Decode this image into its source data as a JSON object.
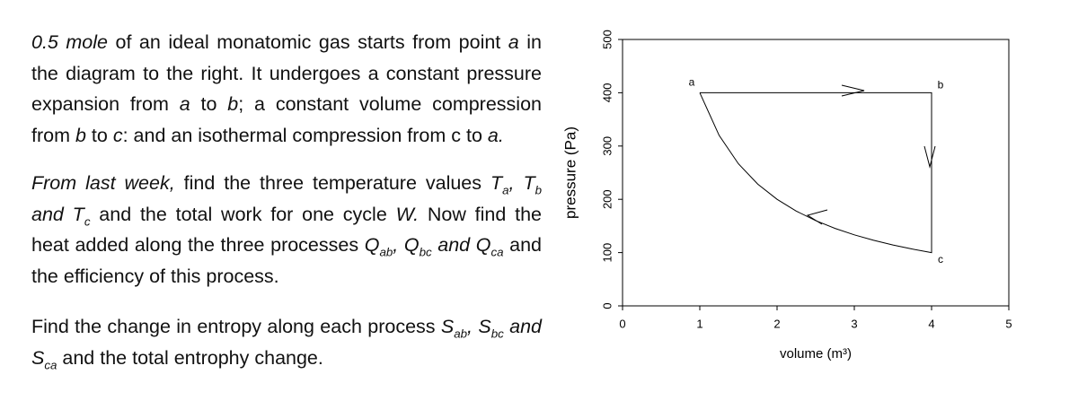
{
  "problem": {
    "paragraphs": [
      [
        {
          "text": "0.5  mole",
          "italic": true
        },
        {
          "text": " of an ideal monatomic gas starts from point "
        },
        {
          "text": "a",
          "italic": true
        },
        {
          "text": " in the diagram to the right.  It undergoes a constant pressure expansion from "
        },
        {
          "text": "a",
          "italic": true
        },
        {
          "text": " to "
        },
        {
          "text": "b",
          "italic": true
        },
        {
          "text": "; a constant volume compression from "
        },
        {
          "text": "b",
          "italic": true
        },
        {
          "text": " to "
        },
        {
          "text": "c",
          "italic": true
        },
        {
          "text": ": and an isothermal compression from "
        },
        {
          "text": "c"
        },
        {
          "text": " to "
        },
        {
          "text": "a.",
          "italic": true
        }
      ],
      [
        {
          "text": "From last week,",
          "italic": true
        },
        {
          "text": " find the three temperature values "
        },
        {
          "text": "T",
          "italic": true
        },
        {
          "text": "a",
          "italic": true,
          "sub": true
        },
        {
          "text": ", ",
          "italic": true
        },
        {
          "text": "T",
          "italic": true
        },
        {
          "text": "b",
          "italic": true,
          "sub": true
        },
        {
          "text": " and T",
          "italic": true
        },
        {
          "text": "c",
          "italic": true,
          "sub": true
        },
        {
          "text": " and the total work for one cycle "
        },
        {
          "text": "W.",
          "italic": true
        },
        {
          "text": " Now find the heat added along the three processes "
        },
        {
          "text": "Q",
          "italic": true
        },
        {
          "text": "ab",
          "italic": true,
          "sub": true
        },
        {
          "text": ", ",
          "italic": true
        },
        {
          "text": "Q",
          "italic": true
        },
        {
          "text": "bc",
          "italic": true,
          "sub": true
        },
        {
          "text": " and Q",
          "italic": true
        },
        {
          "text": "ca",
          "italic": true,
          "sub": true
        },
        {
          "text": " and the efficiency of this process."
        }
      ],
      [
        {
          "text": "Find the change in entropy along each process "
        },
        {
          "text": "S",
          "italic": true
        },
        {
          "text": "ab",
          "italic": true,
          "sub": true
        },
        {
          "text": ", ",
          "italic": true
        },
        {
          "text": "S",
          "italic": true
        },
        {
          "text": "bc",
          "italic": true,
          "sub": true
        },
        {
          "text": " and S",
          "italic": true
        },
        {
          "text": "ca",
          "italic": true,
          "sub": true
        },
        {
          "text": " and the total entrophy change."
        }
      ]
    ]
  },
  "chart_data": {
    "type": "line",
    "x_label": "volume (m³)",
    "y_label": "pressure (Pa)",
    "xlim": [
      0,
      5
    ],
    "xticks": [
      0,
      1,
      2,
      3,
      4,
      5
    ],
    "ylim": [
      0,
      500
    ],
    "yticks": [
      0,
      100,
      200,
      300,
      400,
      500
    ],
    "series": [
      {
        "color": "#000000",
        "x": [
          1,
          4,
          4,
          3.75,
          3.5,
          3.25,
          3,
          2.75,
          2.5,
          2.25,
          2,
          1.75,
          1.5,
          1.25,
          1
        ],
        "values": [
          400,
          400,
          100,
          106.67,
          114.29,
          123.08,
          133.33,
          145.45,
          160,
          177.78,
          200,
          228.57,
          266.67,
          320,
          400
        ]
      }
    ],
    "annotations": [
      {
        "text": "a",
        "x": 1,
        "y": 400
      },
      {
        "text": "b",
        "x": 4,
        "y": 400
      },
      {
        "text": "c",
        "x": 4,
        "y": 100
      }
    ]
  }
}
